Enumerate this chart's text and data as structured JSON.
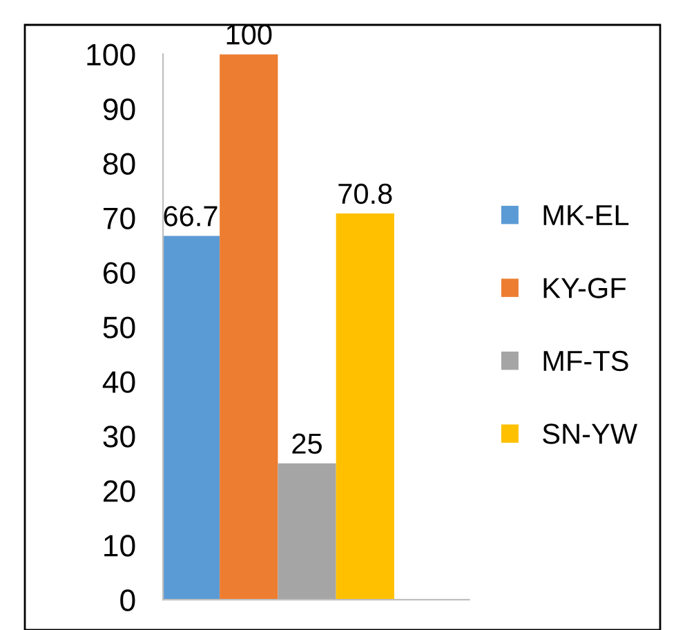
{
  "chart_data": {
    "type": "bar",
    "categories": [
      null
    ],
    "series": [
      {
        "name": "MK-EL",
        "color": "#5b9bd5",
        "values": [
          66.7
        ]
      },
      {
        "name": "KY-GF",
        "color": "#ed7d31",
        "values": [
          100
        ]
      },
      {
        "name": "MF-TS",
        "color": "#a5a5a5",
        "values": [
          25
        ]
      },
      {
        "name": "SN-YW",
        "color": "#ffc000",
        "values": [
          70.8
        ]
      }
    ],
    "ylim": [
      0,
      100
    ],
    "yticks": [
      0,
      10,
      20,
      30,
      40,
      50,
      60,
      70,
      80,
      90,
      100
    ],
    "grid": false,
    "legend": "right",
    "data_labels": true
  }
}
